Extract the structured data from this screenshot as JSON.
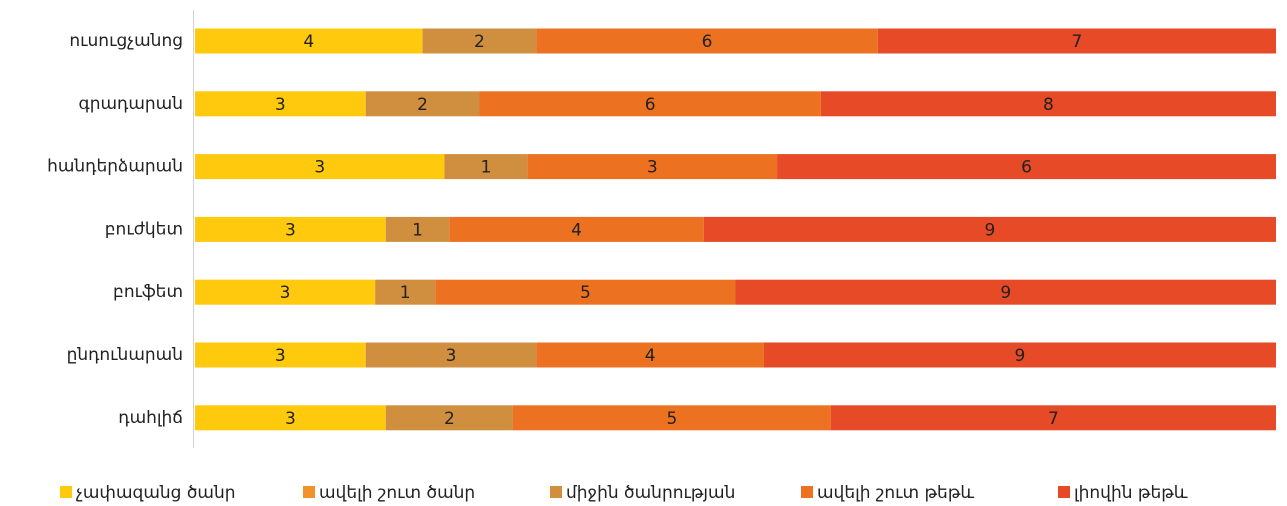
{
  "chart_data": {
    "type": "bar",
    "orientation": "horizontal",
    "stacked_percent": true,
    "legend": "bottom",
    "categories": [
      "ուսուցչանոց",
      "գրադարան",
      "հանդերձարան",
      "բուժկետ",
      "բուֆետ",
      "ընդունարան",
      "դահլիճ"
    ],
    "series": [
      {
        "name": "չափազանց ծանր",
        "color": "#FFC90E",
        "values": [
          4,
          3,
          3,
          3,
          3,
          3,
          3
        ]
      },
      {
        "name": "ավելի շուտ ծանր",
        "color": "#F0932B",
        "values": [
          null,
          null,
          null,
          null,
          null,
          null,
          null
        ]
      },
      {
        "name": "միջին ծանրության",
        "color": "#D08E3F",
        "values": [
          2,
          2,
          1,
          1,
          1,
          3,
          2
        ]
      },
      {
        "name": "ավելի շուտ թեթև",
        "color": "#EC7120",
        "values": [
          6,
          6,
          3,
          4,
          5,
          4,
          5
        ]
      },
      {
        "name": "լիովին թեթև",
        "color": "#E64A26",
        "values": [
          7,
          8,
          6,
          9,
          9,
          9,
          7
        ]
      }
    ]
  }
}
